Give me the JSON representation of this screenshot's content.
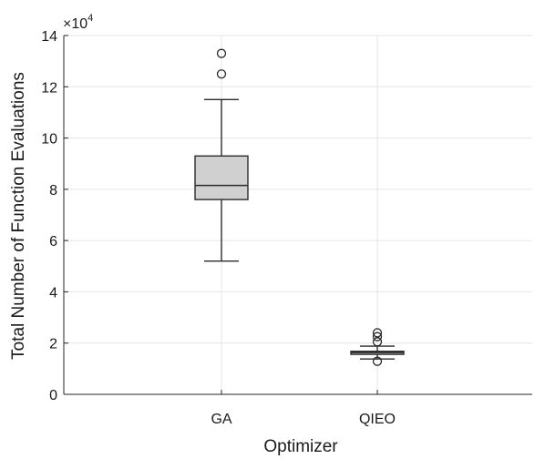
{
  "chart_data": {
    "type": "box",
    "title": "",
    "xlabel": "Optimizer",
    "ylabel": "Total Number of Function Evaluations",
    "y_exponent_label": "×10",
    "y_exponent_power": "4",
    "ylim": [
      0,
      140000
    ],
    "yticks": [
      0,
      20000,
      40000,
      60000,
      80000,
      100000,
      120000,
      140000
    ],
    "ytick_labels": [
      "0",
      "2",
      "4",
      "6",
      "8",
      "10",
      "12",
      "14"
    ],
    "categories": [
      "GA",
      "QIEO"
    ],
    "grid": true,
    "box_color": "#d0d0d0",
    "boxes": [
      {
        "name": "GA",
        "whisker_low": 52000,
        "q1": 76000,
        "median": 81500,
        "q3": 93000,
        "whisker_high": 115000,
        "outliers": [
          125000,
          133000
        ]
      },
      {
        "name": "QIEO",
        "whisker_low": 13800,
        "q1": 15600,
        "median": 16300,
        "q3": 16800,
        "whisker_high": 18800,
        "outliers": [
          12900,
          20500,
          22500,
          24000
        ]
      }
    ]
  }
}
